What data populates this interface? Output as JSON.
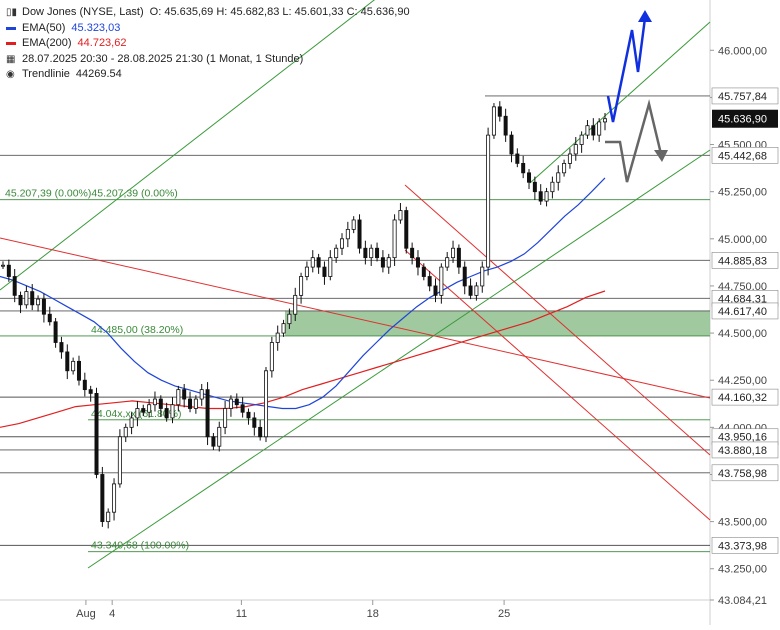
{
  "legend": {
    "instrument": "Dow Jones (NYSE, Last)",
    "ohlc": "O: 45.635,69   H: 45.682,83   L: 45.601,33   C: 45.636,90",
    "ema50_label": "EMA(50)",
    "ema50_value": "45.323,03",
    "ema200_label": "EMA(200)",
    "ema200_value": "44.723,62",
    "range": "28.07.2025 20:30 - 28.08.2025 21:30   (1 Monat, 1 Stunde)",
    "trend_label": "Trendlinie",
    "trend_value": "44269.54"
  },
  "colors": {
    "ema50": "#1f45d8",
    "ema200": "#e02020",
    "trend_green": "#3a9a3a",
    "resistance_red": "#e03030",
    "zone": "#8fc08f",
    "up_arrow": "#1030e0",
    "alt_arrow": "#666666",
    "candle": "#111111",
    "current_label_bg": "#111111"
  },
  "chart_data": {
    "type": "candlestick",
    "timeframe": "1 Stunde",
    "ylim": [
      43084.21,
      46150
    ],
    "y_ticks": [
      {
        "value": 46000,
        "label": "46.000,00"
      },
      {
        "value": 45750,
        "label": "45.750,00"
      },
      {
        "value": 45500,
        "label": "45.500,00"
      },
      {
        "value": 45250,
        "label": "45.250,00"
      },
      {
        "value": 45000,
        "label": "45.000,00"
      },
      {
        "value": 44750,
        "label": "44.750,00"
      },
      {
        "value": 44500,
        "label": "44.500,00"
      },
      {
        "value": 44250,
        "label": "44.250,00"
      },
      {
        "value": 44000,
        "label": "44.000,00"
      },
      {
        "value": 43750,
        "label": "43.750,00"
      },
      {
        "value": 43500,
        "label": "43.500,00"
      },
      {
        "value": 43250,
        "label": "43.250,00"
      },
      {
        "value": 43084.21,
        "label": "43.084,21"
      }
    ],
    "x_ticks": [
      {
        "pos": 0.121,
        "label": "Aug"
      },
      {
        "pos": 0.158,
        "label": "4"
      },
      {
        "pos": 0.34,
        "label": "11"
      },
      {
        "pos": 0.525,
        "label": "18"
      },
      {
        "pos": 0.71,
        "label": "25"
      }
    ],
    "levels": [
      {
        "value": 45757.84,
        "label": "45.757,84"
      },
      {
        "value": 45442.68,
        "label": "45.442,68"
      },
      {
        "value": 45207.39,
        "label": ""
      },
      {
        "value": 44885.83,
        "label": "44.885,83"
      },
      {
        "value": 44684.31,
        "label": "44.684,31"
      },
      {
        "value": 44617.4,
        "label": "44.617,40"
      },
      {
        "value": 44485.0,
        "label": ""
      },
      {
        "value": 44160.32,
        "label": "44.160,32"
      },
      {
        "value": 44040.0,
        "label": ""
      },
      {
        "value": 43950.16,
        "label": "43.950,16"
      },
      {
        "value": 43880.18,
        "label": "43.880,18"
      },
      {
        "value": 43758.98,
        "label": "43.758,98"
      },
      {
        "value": 43373.98,
        "label": "43.373,98"
      }
    ],
    "current_price": {
      "value": 45636.9,
      "label": "45.636,90"
    },
    "fib_labels": [
      {
        "value": 45207.39,
        "label": "45.207,39 (0.00%)45.207,39 (0.00%)"
      },
      {
        "value": 44485.0,
        "label": "44.485,00 (38.20%)"
      },
      {
        "value": 44040.0,
        "label": "44.04x,xx (61.80%)"
      },
      {
        "value": 43340.68,
        "label": "43.340,68 (100.00%)"
      }
    ],
    "zone": {
      "from": 44485,
      "to": 44620
    },
    "closes": [
      44860,
      44800,
      44700,
      44650,
      44720,
      44650,
      44680,
      44600,
      44560,
      44450,
      44400,
      44300,
      44350,
      44250,
      44200,
      44180,
      43750,
      43500,
      43550,
      43700,
      43950,
      44000,
      44050,
      44100,
      44080,
      44120,
      44150,
      44100,
      44050,
      44120,
      44200,
      44150,
      44100,
      44150,
      44200,
      43950,
      43900,
      44000,
      44100,
      44150,
      44120,
      44080,
      44050,
      44000,
      43950,
      44300,
      44450,
      44500,
      44550,
      44600,
      44700,
      44800,
      44850,
      44900,
      44850,
      44800,
      44900,
      44950,
      45000,
      45050,
      45100,
      44950,
      44900,
      44950,
      44900,
      44850,
      44900,
      45100,
      45150,
      44950,
      44900,
      44850,
      44800,
      44750,
      44700,
      44850,
      44900,
      44950,
      44850,
      44750,
      44700,
      44750,
      44850,
      45550,
      45700,
      45650,
      45550,
      45450,
      45400,
      45350,
      45300,
      45250,
      45200,
      45250,
      45300,
      45350,
      45400,
      45450,
      45500,
      45550,
      45600,
      45550,
      45620,
      45637
    ],
    "ema50": [
      44800,
      44780,
      44750,
      44720,
      44680,
      44640,
      44600,
      44560,
      44500,
      44420,
      44350,
      44290,
      44250,
      44220,
      44200,
      44180,
      44160,
      44140,
      44130,
      44120,
      44110,
      44100,
      44100,
      44120,
      44160,
      44220,
      44300,
      44380,
      44450,
      44520,
      44580,
      44640,
      44690,
      44730,
      44770,
      44800,
      44830,
      44850,
      44880,
      44920,
      44980,
      45050,
      45120,
      45180,
      45250,
      45323
    ],
    "ema200": [
      44000,
      44020,
      44050,
      44080,
      44110,
      44120,
      44130,
      44140,
      44130,
      44120,
      44110,
      44100,
      44100,
      44110,
      44130,
      44160,
      44200,
      44230,
      44260,
      44290,
      44320,
      44350,
      44380,
      44410,
      44440,
      44470,
      44500,
      44530,
      44560,
      44600,
      44640,
      44690,
      44723
    ]
  }
}
